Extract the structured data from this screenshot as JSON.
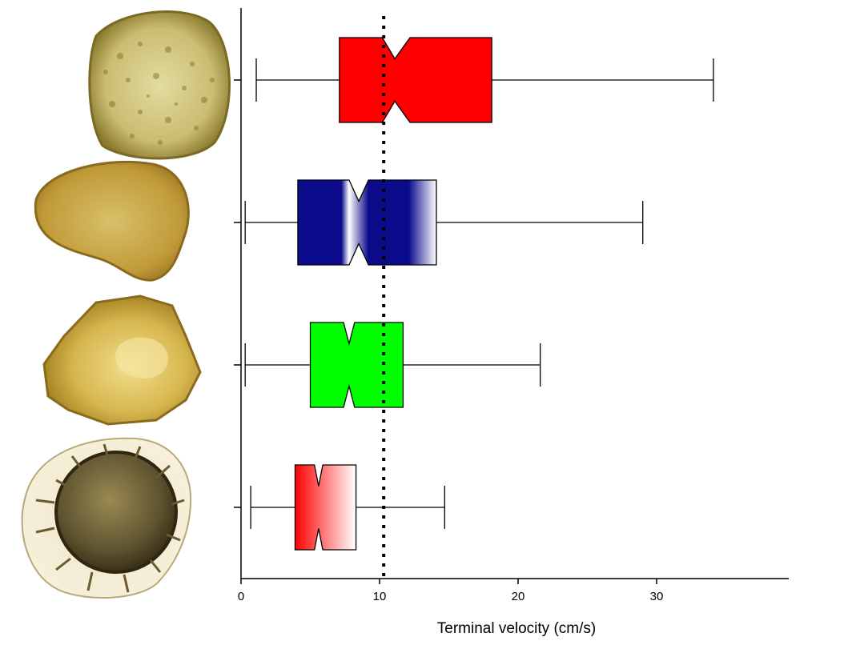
{
  "chart_data": {
    "type": "boxplot",
    "orientation": "horizontal",
    "title": "",
    "xlabel": "Terminal velocity (cm/s)",
    "ylabel": "",
    "xlim": [
      0,
      39
    ],
    "x_ticks": [
      0,
      10,
      20,
      30
    ],
    "x_tick_labels": [
      "0",
      "10",
      "20",
      "30"
    ],
    "notched": true,
    "grid": false,
    "reference_line": {
      "x": 10.3,
      "style": "dotted",
      "color": "#000000"
    },
    "series": [
      {
        "whisker_min": 1.1,
        "q1": 7.1,
        "median": 11.1,
        "q3": 18.1,
        "whisker_max": 34.1,
        "notch_low": 10.2,
        "notch_high": 12.2,
        "fill": "#ff0000",
        "fill_style": "solid",
        "picture": "round-spore-icon"
      },
      {
        "whisker_min": 0.3,
        "q1": 4.1,
        "median": 8.5,
        "q3": 14.1,
        "whisker_max": 29.0,
        "notch_low": 7.8,
        "notch_high": 9.2,
        "fill": "#0b0b8c",
        "fill_style": "gradient",
        "picture": "kidney-spore-icon"
      },
      {
        "whisker_min": 0.3,
        "q1": 5.0,
        "median": 7.8,
        "q3": 11.7,
        "whisker_max": 21.6,
        "notch_low": 7.4,
        "notch_high": 8.2,
        "fill": "#00ff00",
        "fill_style": "solid",
        "picture": "angular-spore-icon"
      },
      {
        "whisker_min": 0.7,
        "q1": 3.9,
        "median": 5.6,
        "q3": 8.3,
        "whisker_max": 14.7,
        "notch_low": 5.3,
        "notch_high": 5.9,
        "fill": "#ff0000",
        "fill_style": "gradient",
        "picture": "spiny-spore-icon"
      }
    ]
  }
}
